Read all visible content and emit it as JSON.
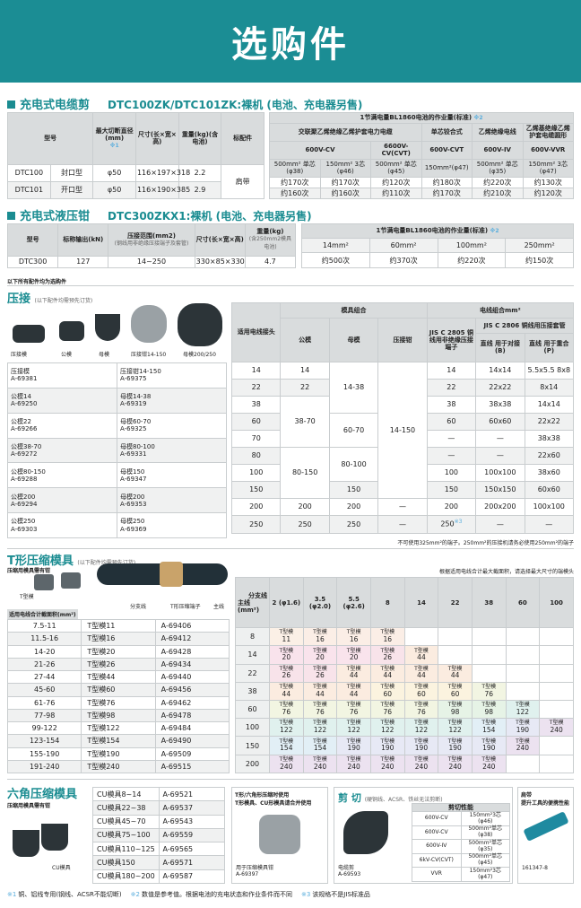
{
  "header": {
    "title": "选购件"
  },
  "cutter": {
    "section_title": "充电式电缆剪",
    "model_title": "DTC100ZK/DTC101ZK:裸机 (电池、充电器另售)",
    "headers": {
      "model": "型号",
      "max_cut": "最大切断直径(mm)",
      "max_cut_note": "※1",
      "size": "尺寸(长×宽×高)",
      "weight": "重量(kg)(含电池)",
      "accessory": "标配件"
    },
    "rows": [
      [
        "DTC100",
        "封口型",
        "φ50",
        "116×197×318",
        "2.2"
      ],
      [
        "DTC101",
        "开口型",
        "φ50",
        "116×190×385",
        "2.9"
      ]
    ],
    "accessory_value": "肩带",
    "work": {
      "title": "1节满电量BL1860电池的作业量(标准)",
      "note": "※2",
      "group1": "交联聚乙烯绝缘乙烯护套电力电缆",
      "group2": "单芯铰合式",
      "group3": "乙烯绝缘电线",
      "group4": "乙烯基绝缘乙烯护套电缆圆形",
      "volt": [
        "600V-CV",
        "6600V-CV(CVT)",
        "600V-CVT",
        "600V-IV",
        "600V-VVR"
      ],
      "sizes": [
        "500mm² 单芯(φ38)",
        "150mm² 3芯(φ46)",
        "500mm² 单芯(φ45)",
        "150mm²(φ47)",
        "500mm² 单芯(φ35)",
        "150mm² 3芯(φ47)"
      ],
      "rows": [
        [
          "约170次",
          "约170次",
          "约120次",
          "约180次",
          "约220次",
          "约130次"
        ],
        [
          "约160次",
          "约160次",
          "约110次",
          "约170次",
          "约210次",
          "约120次"
        ]
      ]
    }
  },
  "crimper": {
    "section_title": "充电式液压钳",
    "model_title": "DTC300ZKX1:裸机 (电池、充电器另售)",
    "headers": {
      "model": "型号",
      "output": "标称输出(kN)",
      "range": "压接范围(mm2)",
      "range_sub": "(钢线用非绝缘压接端子及套管)",
      "size": "尺寸(长×宽×高)",
      "weight": "重量(kg)",
      "weight_sub": "(含250mm2模具电池)"
    },
    "row": [
      "DTC300",
      "127",
      "14~250",
      "330×85×330",
      "4.7"
    ],
    "work": {
      "title": "1节满电量BL1860电池的作业量(标准)",
      "note": "※2",
      "sizes": [
        "14mm²",
        "60mm²",
        "100mm²",
        "250mm²"
      ],
      "values": [
        "约500次",
        "约370次",
        "约220次",
        "约150次"
      ]
    }
  },
  "optional_note": "以下所有配件均为选购件",
  "crimp": {
    "title": "压接",
    "subtitle": "(以下配件均需预先订货)",
    "image_labels": [
      "压接模",
      "公模",
      "母模",
      "压接钳14-150",
      "母模200/250"
    ],
    "parts": [
      [
        "压接模",
        "A-69381",
        "压接钳14-150",
        "A-69375"
      ],
      [
        "公模14",
        "A-69250",
        "母模14-38",
        "A-69319"
      ],
      [
        "公模22",
        "A-69266",
        "母模60-70",
        "A-69325"
      ],
      [
        "公模38-70",
        "A-69272",
        "母模80-100",
        "A-69331"
      ],
      [
        "公模80-150",
        "A-69288",
        "母模150",
        "A-69347"
      ],
      [
        "公模200",
        "A-69294",
        "母模200",
        "A-69353"
      ],
      [
        "公模250",
        "A-69303",
        "母模250",
        "A-69369"
      ]
    ],
    "table": {
      "h_joint": "适用电线接头",
      "h_die": "模具组合",
      "h_male": "公模",
      "h_female": "母模",
      "h_tool": "压接钳",
      "h_wire": "电线组合mm²",
      "h_2805": "JIS C 2805 铜线用非绝缘压接端子",
      "h_2806": "JIS C 2806 铜线用压接套管",
      "h_b": "直线 用于对接(B)",
      "h_p": "直线 用于重合(P)",
      "joint": [
        "14",
        "22",
        "38",
        "60",
        "70",
        "80",
        "100",
        "150",
        "200",
        "250"
      ],
      "male": [
        "14",
        "22",
        "38-70",
        "80-150",
        "200",
        "250"
      ],
      "female": [
        "14-38",
        "60-70",
        "80-100",
        "150",
        "200",
        "250"
      ],
      "tool": [
        "14-150",
        "—",
        "—"
      ],
      "c2805": [
        "14",
        "22",
        "38",
        "60",
        "—",
        "—",
        "100",
        "150",
        "200",
        "250"
      ],
      "c2805_note": "※3",
      "b": [
        "14x14",
        "22x22",
        "38x38",
        "60x60",
        "—",
        "—",
        "100x100",
        "150x150",
        "200x200",
        "—"
      ],
      "p": [
        "5.5x5.5 8x8",
        "8x14",
        "14x14",
        "22x22",
        "38x38",
        "22x60",
        "38x60",
        "60x60",
        "100x100",
        "—"
      ]
    },
    "footnote": "不可使用325mm²的端子。250mm²的压接机请务必使用250mm²的端子"
  },
  "tdie": {
    "title": "T形压缩模具",
    "subtitle": "(以下配件均需预先订货)",
    "need_tool": "压缩用模具需有钳",
    "die_label": "T型模",
    "branch_label": "分支线",
    "terminal_label": "T形压缩端子",
    "main_label": "主线",
    "list_header": "适用电线合计截面积(mm²)",
    "list": [
      [
        "7.5-11",
        "T型模11",
        "A-69406"
      ],
      [
        "11.5-16",
        "T型模16",
        "A-69412"
      ],
      [
        "14-20",
        "T型模20",
        "A-69428"
      ],
      [
        "21-26",
        "T型模26",
        "A-69434"
      ],
      [
        "27-44",
        "T型模44",
        "A-69440"
      ],
      [
        "45-60",
        "T型模60",
        "A-69456"
      ],
      [
        "61-76",
        "T型模76",
        "A-69462"
      ],
      [
        "77-98",
        "T型模98",
        "A-69478"
      ],
      [
        "99-122",
        "T型模122",
        "A-69484"
      ],
      [
        "123-154",
        "T型模154",
        "A-69490"
      ],
      [
        "155-190",
        "T型模190",
        "A-69509"
      ],
      [
        "191-240",
        "T型模240",
        "A-69515"
      ]
    ],
    "note": "根据适用电线合计最大截面积，请选择最大尺寸的端模头",
    "corner_branch": "分支线",
    "corner_main": "主线 (mm²)",
    "cell_prefix": "T型模",
    "cols": [
      "2 (φ1.6)",
      "3.5 (φ2.0)",
      "5.5 (φ2.6)",
      "8",
      "14",
      "22",
      "38",
      "60",
      "100"
    ],
    "rows": [
      {
        "main": "8",
        "cells": [
          "11",
          "16",
          "16",
          "16",
          "",
          "",
          "",
          "",
          ""
        ]
      },
      {
        "main": "14",
        "cells": [
          "20",
          "20",
          "20",
          "26",
          "44",
          "",
          "",
          "",
          ""
        ]
      },
      {
        "main": "22",
        "cells": [
          "26",
          "26",
          "44",
          "44",
          "44",
          "44",
          "",
          "",
          ""
        ]
      },
      {
        "main": "38",
        "cells": [
          "44",
          "44",
          "44",
          "60",
          "60",
          "60",
          "76",
          "",
          ""
        ]
      },
      {
        "main": "60",
        "cells": [
          "76",
          "76",
          "76",
          "76",
          "76",
          "98",
          "98",
          "122",
          ""
        ]
      },
      {
        "main": "100",
        "cells": [
          "122",
          "122",
          "122",
          "122",
          "122",
          "122",
          "154",
          "190",
          "240"
        ]
      },
      {
        "main": "150",
        "cells": [
          "154",
          "154",
          "190",
          "190",
          "190",
          "190",
          "190",
          "240",
          ""
        ]
      },
      {
        "main": "200",
        "cells": [
          "240",
          "240",
          "240",
          "240",
          "240",
          "240",
          "240",
          "",
          ""
        ]
      }
    ],
    "colors": {
      "11": "#fbf0e6",
      "16": "#fbeee6",
      "20": "#f9e3ec",
      "26": "#f8e3ea",
      "44": "#fbece0",
      "60": "#fbf3df",
      "76": "#f2f5e2",
      "98": "#e6f3e6",
      "122": "#e0f1ee",
      "154": "#e2eff6",
      "190": "#e7e9f5",
      "240": "#ece2f0"
    }
  },
  "hex": {
    "title": "六角压缩模具",
    "need_tool": "压缩用模具需有钳",
    "image_label": "CU模具",
    "list": [
      [
        "CU模具8~14",
        "A-69521"
      ],
      [
        "CU模具22~38",
        "A-69537"
      ],
      [
        "CU模具45~70",
        "A-69543"
      ],
      [
        "CU模具75~100",
        "A-69559"
      ],
      [
        "CU模具110~125",
        "A-69565"
      ],
      [
        "CU模具150",
        "A-69571"
      ],
      [
        "CU模具180~200",
        "A-69587"
      ]
    ]
  },
  "holder": {
    "line1": "T形/六角形压缩时使用",
    "line2": "T形模具、CU形模具请合并使用",
    "name": "用于压缩模具钳",
    "code": "A-69397"
  },
  "cut": {
    "title": "剪 切",
    "subtitle": "(硬铜线、ACSR、铁丝无法剪断)",
    "perf_header": "剪切性能",
    "name": "电缆剪",
    "code": "A-69593",
    "rows": [
      [
        "600V-CV",
        "150mm²3芯(φ46)"
      ],
      [
        "600V-CV",
        "500mm²单芯(φ38)"
      ],
      [
        "600V-IV",
        "500mm²单芯(φ35)"
      ],
      [
        "6kV-CV(CVT)",
        "500mm²单芯(φ45)"
      ],
      [
        "VVR",
        "150mm²3芯(φ47)"
      ]
    ]
  },
  "strap": {
    "title": "肩带",
    "desc": "提升工具的便携性能",
    "code": "161347-8",
    "logo": "makita"
  },
  "footnotes": [
    {
      "mark": "※1",
      "text": "铜、铝线专用(钢线、ACSR不能切断)"
    },
    {
      "mark": "※2",
      "text": "数值是参考值。根据电池的充电状态和作业条件而不同"
    },
    {
      "mark": "※3",
      "text": "该规格不是JIS标准品"
    }
  ],
  "colors": {
    "brand": "#1b8d94",
    "header_gray": "#d9dcdd",
    "note_blue": "#5aaedd"
  }
}
